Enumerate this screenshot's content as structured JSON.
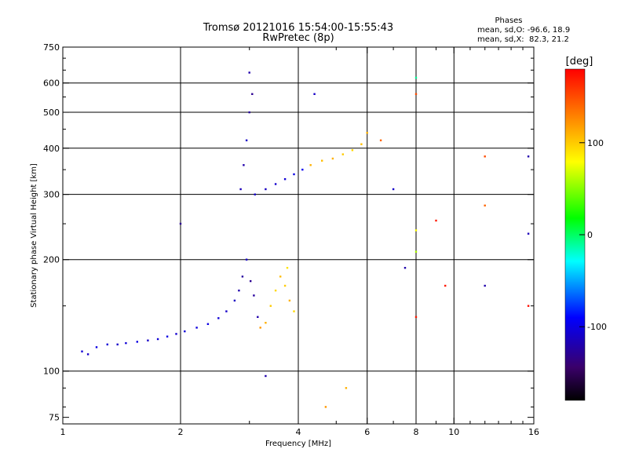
{
  "chart_data": {
    "type": "scatter",
    "title": "Tromsø 20121016 15:54:00-15:55:43",
    "subtitle": "RwPretec (8p)",
    "xlabel": "Frequency [MHz]",
    "ylabel": "Stationary phase Virtual Height [km]",
    "x_scale": "log",
    "y_scale": "log",
    "xlim": [
      1,
      16
    ],
    "ylim": [
      72,
      750
    ],
    "x_ticks": [
      {
        "value": 1,
        "label": "1"
      },
      {
        "value": 2,
        "label": "2"
      },
      {
        "value": 4,
        "label": "4"
      },
      {
        "value": 6,
        "label": "6"
      },
      {
        "value": 8,
        "label": "8"
      },
      {
        "value": 10,
        "label": "10"
      },
      {
        "value": 16,
        "label": "16"
      }
    ],
    "y_ticks": [
      {
        "value": 75,
        "label": "75"
      },
      {
        "value": 100,
        "label": "100"
      },
      {
        "value": 200,
        "label": "200"
      },
      {
        "value": 300,
        "label": "300"
      },
      {
        "value": 400,
        "label": "400"
      },
      {
        "value": 500,
        "label": "500"
      },
      {
        "value": 600,
        "label": "600"
      },
      {
        "value": 750,
        "label": "750"
      }
    ],
    "x_grid": [
      2,
      4,
      6,
      8,
      10
    ],
    "y_grid": [
      100,
      200,
      300,
      400,
      500,
      600
    ],
    "grid": true,
    "stats": {
      "title": "Phases",
      "line_o": "mean, sd,O: -96.6, 18.9",
      "line_x": "mean, sd,X:  82.3, 21.2"
    },
    "colorbar": {
      "label": "[deg]",
      "range": [
        -180,
        180
      ],
      "ticks": [
        {
          "value": 100,
          "label": "100"
        },
        {
          "value": 0,
          "label": "0"
        },
        {
          "value": -100,
          "label": "-100"
        }
      ]
    },
    "series": [
      {
        "points": [
          [
            1.12,
            113,
            -105
          ],
          [
            1.16,
            111,
            -110
          ],
          [
            1.22,
            116,
            -100
          ],
          [
            1.3,
            118,
            -105
          ],
          [
            1.38,
            118,
            -110
          ],
          [
            1.45,
            119,
            -105
          ],
          [
            1.55,
            120,
            -100
          ],
          [
            1.65,
            121,
            -110
          ],
          [
            1.75,
            122,
            -105
          ],
          [
            1.85,
            124,
            -100
          ],
          [
            1.95,
            126,
            -108
          ],
          [
            2.05,
            128,
            -105
          ],
          [
            2.2,
            131,
            -102
          ],
          [
            2.35,
            134,
            -100
          ],
          [
            2.5,
            139,
            -105
          ],
          [
            2.62,
            145,
            -110
          ],
          [
            2.75,
            155,
            -112
          ],
          [
            2.82,
            165,
            -120
          ],
          [
            2.88,
            180,
            -125
          ],
          [
            2.95,
            200,
            -110
          ],
          [
            3.02,
            175,
            -130
          ],
          [
            3.08,
            160,
            -125
          ],
          [
            3.15,
            140,
            -120
          ],
          [
            3.2,
            131,
            120
          ],
          [
            3.3,
            135,
            110
          ],
          [
            3.4,
            150,
            100
          ],
          [
            3.5,
            165,
            95
          ],
          [
            3.6,
            180,
            105
          ],
          [
            3.7,
            170,
            100
          ],
          [
            3.8,
            155,
            110
          ],
          [
            3.9,
            145,
            95
          ],
          [
            3.75,
            190,
            90
          ],
          [
            2.85,
            310,
            -115
          ],
          [
            2.9,
            360,
            -120
          ],
          [
            2.95,
            420,
            -110
          ],
          [
            3.0,
            500,
            -125
          ],
          [
            3.05,
            560,
            -130
          ],
          [
            3.0,
            640,
            -120
          ],
          [
            3.1,
            300,
            -110
          ],
          [
            3.3,
            310,
            -112
          ],
          [
            3.5,
            320,
            -108
          ],
          [
            3.7,
            330,
            -105
          ],
          [
            3.9,
            340,
            -100
          ],
          [
            4.1,
            350,
            -95
          ],
          [
            4.3,
            360,
            110
          ],
          [
            4.6,
            370,
            105
          ],
          [
            4.9,
            375,
            110
          ],
          [
            5.2,
            385,
            100
          ],
          [
            5.5,
            395,
            95
          ],
          [
            5.8,
            410,
            105
          ],
          [
            6.0,
            440,
            110
          ],
          [
            4.4,
            560,
            -110
          ],
          [
            8.0,
            620,
            -10
          ],
          [
            8.0,
            560,
            150
          ],
          [
            8.0,
            240,
            80
          ],
          [
            8.0,
            210,
            60
          ],
          [
            9.0,
            255,
            170
          ],
          [
            12.0,
            380,
            150
          ],
          [
            12.0,
            280,
            140
          ],
          [
            15.5,
            380,
            -120
          ],
          [
            15.5,
            235,
            -115
          ],
          [
            15.5,
            150,
            175
          ],
          [
            6.5,
            420,
            140
          ],
          [
            2.0,
            250,
            -130
          ],
          [
            7.0,
            310,
            -110
          ],
          [
            9.5,
            170,
            170
          ],
          [
            12.0,
            170,
            -120
          ],
          [
            5.3,
            90,
            110
          ],
          [
            4.7,
            80,
            120
          ],
          [
            3.3,
            97,
            -120
          ],
          [
            8.0,
            140,
            170
          ],
          [
            7.5,
            190,
            -120
          ]
        ]
      }
    ]
  }
}
